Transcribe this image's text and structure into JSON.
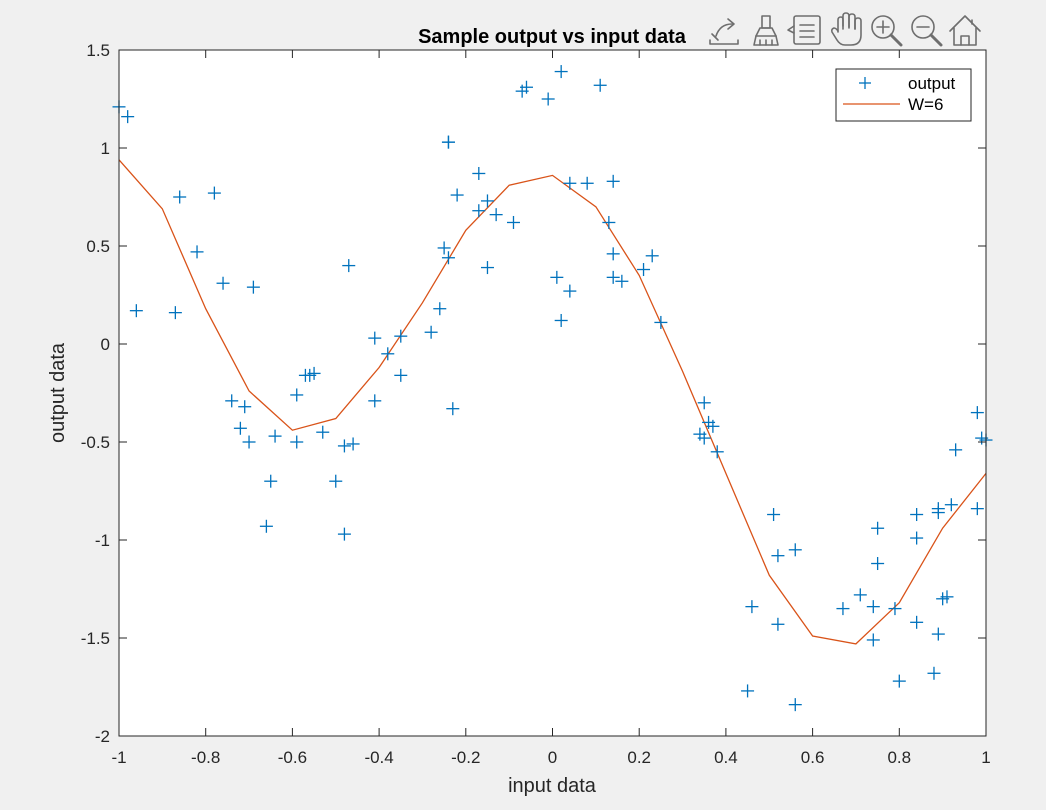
{
  "colors": {
    "background": "#f0f0f0",
    "axes_bg": "#ffffff",
    "axis": "#262626",
    "series_output": "#0072bd",
    "series_fit": "#d95319",
    "toolbar_icon": "#6e6e6e"
  },
  "toolbar": {
    "icons": [
      "export-icon",
      "brush-icon",
      "datatip-icon",
      "pan-icon",
      "zoom-in-icon",
      "zoom-out-icon",
      "home-icon"
    ]
  },
  "chart_data": {
    "type": "scatter",
    "title": "Sample output vs input data",
    "xlabel": "input data",
    "ylabel": "output data",
    "xlim": [
      -1,
      1
    ],
    "ylim": [
      -2,
      1.5
    ],
    "grid": false,
    "legend_position": "top-right",
    "xticks": [
      -1,
      -0.8,
      -0.6,
      -0.4,
      -0.2,
      0,
      0.2,
      0.4,
      0.6,
      0.8,
      1
    ],
    "xtick_labels": [
      "-1",
      "-0.8",
      "-0.6",
      "-0.4",
      "-0.2",
      "0",
      "0.2",
      "0.4",
      "0.6",
      "0.8",
      "1"
    ],
    "yticks": [
      -2,
      -1.5,
      -1,
      -0.5,
      0,
      0.5,
      1,
      1.5
    ],
    "ytick_labels": [
      "-2",
      "-1.5",
      "-1",
      "-0.5",
      "0",
      "0.5",
      "1",
      "1.5"
    ],
    "series": [
      {
        "name": "output",
        "kind": "markers",
        "marker": "+",
        "points": [
          [
            -1.0,
            1.21
          ],
          [
            -0.98,
            1.16
          ],
          [
            -0.96,
            0.17
          ],
          [
            -0.87,
            0.16
          ],
          [
            -0.86,
            0.75
          ],
          [
            -0.82,
            0.47
          ],
          [
            -0.78,
            0.77
          ],
          [
            -0.76,
            0.31
          ],
          [
            -0.74,
            -0.29
          ],
          [
            -0.72,
            -0.43
          ],
          [
            -0.71,
            -0.32
          ],
          [
            -0.7,
            -0.5
          ],
          [
            -0.69,
            0.29
          ],
          [
            -0.66,
            -0.93
          ],
          [
            -0.65,
            -0.7
          ],
          [
            -0.64,
            -0.47
          ],
          [
            -0.59,
            -0.26
          ],
          [
            -0.59,
            -0.5
          ],
          [
            -0.57,
            -0.16
          ],
          [
            -0.56,
            -0.16
          ],
          [
            -0.55,
            -0.15
          ],
          [
            -0.53,
            -0.45
          ],
          [
            -0.5,
            -0.7
          ],
          [
            -0.48,
            -0.97
          ],
          [
            -0.48,
            -0.52
          ],
          [
            -0.47,
            0.4
          ],
          [
            -0.46,
            -0.51
          ],
          [
            -0.41,
            -0.29
          ],
          [
            -0.41,
            0.03
          ],
          [
            -0.38,
            -0.05
          ],
          [
            -0.35,
            0.04
          ],
          [
            -0.35,
            -0.16
          ],
          [
            -0.28,
            0.06
          ],
          [
            -0.26,
            0.18
          ],
          [
            -0.25,
            0.49
          ],
          [
            -0.24,
            0.44
          ],
          [
            -0.24,
            1.03
          ],
          [
            -0.24,
            1.03
          ],
          [
            -0.23,
            -0.33
          ],
          [
            -0.22,
            0.76
          ],
          [
            -0.17,
            0.68
          ],
          [
            -0.17,
            0.87
          ],
          [
            -0.15,
            0.39
          ],
          [
            -0.15,
            0.73
          ],
          [
            -0.13,
            0.66
          ],
          [
            -0.09,
            0.62
          ],
          [
            -0.07,
            1.29
          ],
          [
            -0.06,
            1.31
          ],
          [
            -0.01,
            1.25
          ],
          [
            0.01,
            0.34
          ],
          [
            0.02,
            1.39
          ],
          [
            0.02,
            0.12
          ],
          [
            0.04,
            0.27
          ],
          [
            0.04,
            0.82
          ],
          [
            0.08,
            0.82
          ],
          [
            0.11,
            1.32
          ],
          [
            0.13,
            0.62
          ],
          [
            0.14,
            0.83
          ],
          [
            0.14,
            0.34
          ],
          [
            0.14,
            0.46
          ],
          [
            0.16,
            0.32
          ],
          [
            0.21,
            0.38
          ],
          [
            0.23,
            0.45
          ],
          [
            0.25,
            0.11
          ],
          [
            0.34,
            -0.46
          ],
          [
            0.35,
            -0.48
          ],
          [
            0.35,
            -0.3
          ],
          [
            0.36,
            -0.4
          ],
          [
            0.37,
            -0.42
          ],
          [
            0.38,
            -0.55
          ],
          [
            0.51,
            -0.87
          ],
          [
            0.52,
            -1.08
          ],
          [
            0.52,
            -1.43
          ],
          [
            0.46,
            -1.34
          ],
          [
            0.45,
            -1.77
          ],
          [
            0.56,
            -1.05
          ],
          [
            0.56,
            -1.84
          ],
          [
            0.67,
            -1.35
          ],
          [
            0.71,
            -1.28
          ],
          [
            0.74,
            -1.51
          ],
          [
            0.74,
            -1.34
          ],
          [
            0.75,
            -0.94
          ],
          [
            0.75,
            -1.12
          ],
          [
            0.79,
            -1.35
          ],
          [
            0.8,
            -1.72
          ],
          [
            0.84,
            -0.87
          ],
          [
            0.84,
            -0.99
          ],
          [
            0.84,
            -1.42
          ],
          [
            0.88,
            -1.68
          ],
          [
            0.89,
            -1.48
          ],
          [
            0.89,
            -0.86
          ],
          [
            0.89,
            -0.84
          ],
          [
            0.9,
            -1.3
          ],
          [
            0.91,
            -1.29
          ],
          [
            0.92,
            -0.82
          ],
          [
            0.93,
            -0.54
          ],
          [
            0.98,
            -0.35
          ],
          [
            0.98,
            -0.84
          ],
          [
            0.99,
            -0.48
          ],
          [
            1.0,
            -0.49
          ]
        ]
      },
      {
        "name": "W=6",
        "kind": "line",
        "points": [
          [
            -1.0,
            0.94
          ],
          [
            -0.9,
            0.69
          ],
          [
            -0.8,
            0.18
          ],
          [
            -0.7,
            -0.24
          ],
          [
            -0.6,
            -0.44
          ],
          [
            -0.5,
            -0.38
          ],
          [
            -0.4,
            -0.12
          ],
          [
            -0.3,
            0.21
          ],
          [
            -0.2,
            0.58
          ],
          [
            -0.1,
            0.81
          ],
          [
            0.0,
            0.86
          ],
          [
            0.1,
            0.7
          ],
          [
            0.2,
            0.35
          ],
          [
            0.3,
            -0.14
          ],
          [
            0.4,
            -0.66
          ],
          [
            0.5,
            -1.18
          ],
          [
            0.6,
            -1.49
          ],
          [
            0.7,
            -1.53
          ],
          [
            0.8,
            -1.32
          ],
          [
            0.9,
            -0.94
          ],
          [
            1.0,
            -0.66
          ]
        ]
      }
    ]
  }
}
